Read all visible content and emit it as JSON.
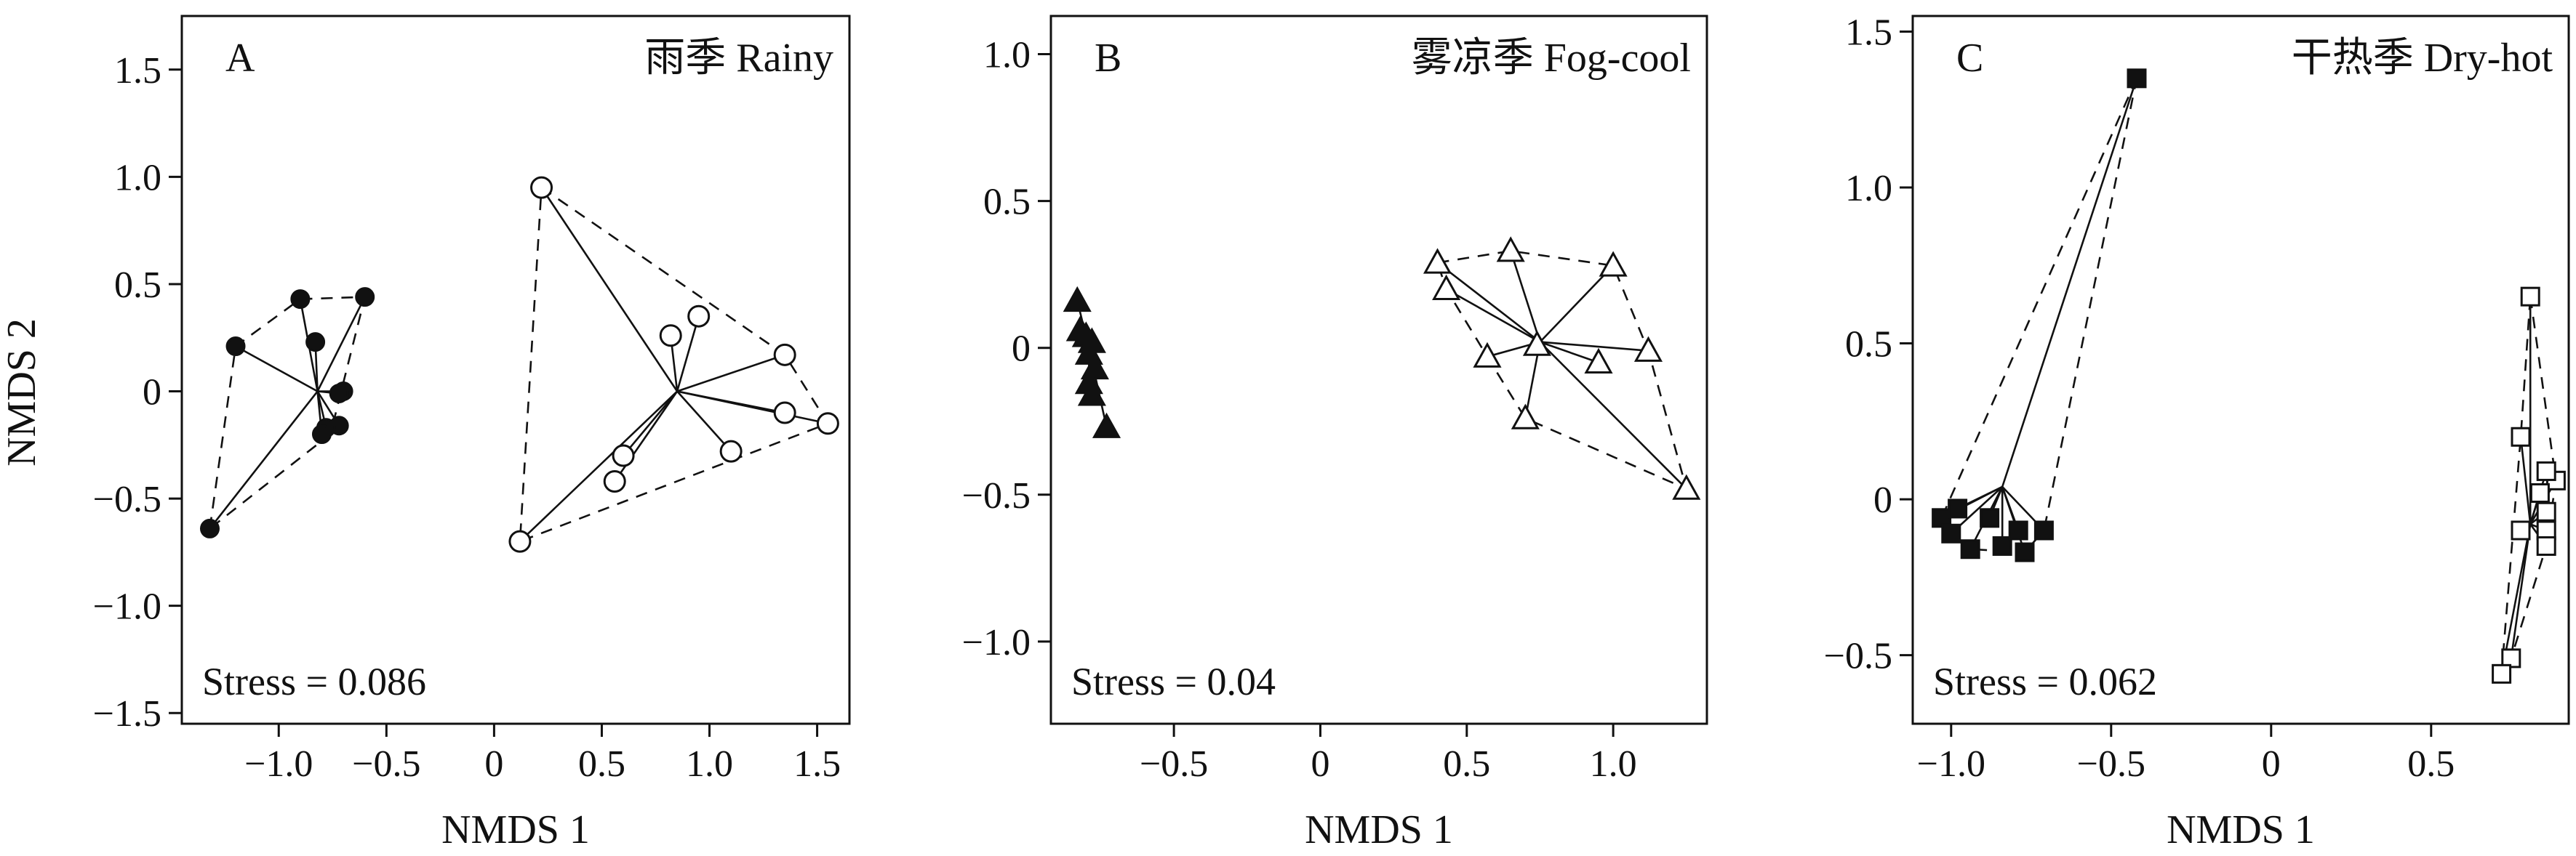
{
  "axis_labels": {
    "x": "NMDS 1",
    "y": "NMDS 2"
  },
  "chart_data": [
    {
      "type": "scatter",
      "panel": "A",
      "title": "雨季 Rainy",
      "xlabel": "NMDS 1",
      "ylabel": "NMDS 2",
      "xlim": [
        -1.45,
        1.65
      ],
      "ylim": [
        -1.55,
        1.75
      ],
      "xticks": [
        -1.0,
        -0.5,
        0,
        0.5,
        1.0,
        1.5
      ],
      "xtick_labels": [
        "−1.0",
        "−0.5",
        "0",
        "0.5",
        "1.0",
        "1.5"
      ],
      "yticks": [
        -1.5,
        -1.0,
        -0.5,
        0,
        0.5,
        1.0,
        1.5
      ],
      "ytick_labels": [
        "−1.5",
        "−1.0",
        "−0.5",
        "0",
        "0.5",
        "1.0",
        "1.5"
      ],
      "stress": "Stress = 0.086",
      "series": [
        {
          "marker": "circle-filled",
          "centroid": [
            -0.82,
            0.0
          ],
          "hull": [
            [
              -1.32,
              -0.64
            ],
            [
              -1.2,
              0.21
            ],
            [
              -0.9,
              0.43
            ],
            [
              -0.6,
              0.44
            ],
            [
              -0.76,
              -0.2
            ]
          ],
          "points": [
            [
              -1.32,
              -0.64
            ],
            [
              -1.2,
              0.21
            ],
            [
              -0.9,
              0.43
            ],
            [
              -0.6,
              0.44
            ],
            [
              -0.83,
              0.23
            ],
            [
              -0.7,
              0.0
            ],
            [
              -0.72,
              -0.01
            ],
            [
              -0.72,
              -0.16
            ],
            [
              -0.78,
              -0.17
            ],
            [
              -0.8,
              -0.2
            ]
          ]
        },
        {
          "marker": "circle-open",
          "centroid": [
            0.85,
            0.0
          ],
          "hull": [
            [
              0.22,
              0.95
            ],
            [
              1.35,
              0.17
            ],
            [
              1.55,
              -0.15
            ],
            [
              0.12,
              -0.7
            ]
          ],
          "points": [
            [
              0.22,
              0.95
            ],
            [
              0.95,
              0.35
            ],
            [
              0.82,
              0.26
            ],
            [
              1.35,
              0.17
            ],
            [
              1.35,
              -0.1
            ],
            [
              1.55,
              -0.15
            ],
            [
              1.1,
              -0.28
            ],
            [
              0.6,
              -0.3
            ],
            [
              0.56,
              -0.42
            ],
            [
              0.12,
              -0.7
            ]
          ]
        }
      ]
    },
    {
      "type": "scatter",
      "panel": "B",
      "title": "雾凉季 Fog-cool",
      "xlabel": "NMDS 1",
      "ylabel": "",
      "xlim": [
        -0.92,
        1.32
      ],
      "ylim": [
        -1.28,
        1.13
      ],
      "xticks": [
        -0.5,
        0,
        0.5,
        1.0
      ],
      "xtick_labels": [
        "−0.5",
        "0",
        "0.5",
        "1.0"
      ],
      "yticks": [
        -1.0,
        -0.5,
        0,
        0.5,
        1.0
      ],
      "ytick_labels": [
        "−1.0",
        "−0.5",
        "0",
        "0.5",
        "1.0"
      ],
      "stress": "Stress = 0.04",
      "series": [
        {
          "marker": "triangle-filled",
          "centroid": [
            -0.79,
            0.0
          ],
          "hull": [],
          "points": [
            [
              -0.83,
              0.16
            ],
            [
              -0.82,
              0.06
            ],
            [
              -0.8,
              0.04
            ],
            [
              -0.78,
              0.02
            ],
            [
              -0.79,
              -0.02
            ],
            [
              -0.77,
              -0.07
            ],
            [
              -0.79,
              -0.12
            ],
            [
              -0.78,
              -0.16
            ],
            [
              -0.73,
              -0.27
            ]
          ]
        },
        {
          "marker": "triangle-open",
          "centroid": [
            0.75,
            0.02
          ],
          "hull": [
            [
              0.4,
              0.29
            ],
            [
              0.65,
              0.33
            ],
            [
              1.0,
              0.28
            ],
            [
              1.12,
              -0.01
            ],
            [
              1.25,
              -0.48
            ],
            [
              0.7,
              -0.24
            ],
            [
              0.57,
              -0.03
            ],
            [
              0.43,
              0.2
            ]
          ],
          "points": [
            [
              0.4,
              0.29
            ],
            [
              0.43,
              0.2
            ],
            [
              0.65,
              0.33
            ],
            [
              1.0,
              0.28
            ],
            [
              0.57,
              -0.03
            ],
            [
              0.74,
              0.01
            ],
            [
              0.95,
              -0.05
            ],
            [
              1.12,
              -0.01
            ],
            [
              0.7,
              -0.24
            ],
            [
              1.25,
              -0.48
            ]
          ]
        }
      ]
    },
    {
      "type": "scatter",
      "panel": "C",
      "title": "干热季 Dry-hot",
      "xlabel": "NMDS 1",
      "ylabel": "",
      "xlim": [
        -1.12,
        0.93
      ],
      "ylim": [
        -0.72,
        1.55
      ],
      "xticks": [
        -1.0,
        -0.5,
        0,
        0.5
      ],
      "xtick_labels": [
        "−1.0",
        "−0.5",
        "0",
        "0.5"
      ],
      "yticks": [
        -0.5,
        0,
        0.5,
        1.0,
        1.5
      ],
      "ytick_labels": [
        "−0.5",
        "0",
        "0.5",
        "1.0",
        "1.5"
      ],
      "stress": "Stress = 0.062",
      "series": [
        {
          "marker": "square-filled",
          "centroid": [
            -0.84,
            0.04
          ],
          "hull": [
            [
              -0.42,
              1.35
            ],
            [
              -1.03,
              -0.06
            ],
            [
              -1.0,
              -0.11
            ],
            [
              -0.94,
              -0.16
            ],
            [
              -0.77,
              -0.17
            ],
            [
              -0.71,
              -0.1
            ]
          ],
          "points": [
            [
              -0.42,
              1.35
            ],
            [
              -1.03,
              -0.06
            ],
            [
              -0.98,
              -0.03
            ],
            [
              -1.0,
              -0.11
            ],
            [
              -0.94,
              -0.16
            ],
            [
              -0.88,
              -0.06
            ],
            [
              -0.84,
              -0.15
            ],
            [
              -0.79,
              -0.1
            ],
            [
              -0.77,
              -0.17
            ],
            [
              -0.71,
              -0.1
            ]
          ]
        },
        {
          "marker": "square-open",
          "centroid": [
            0.81,
            -0.08
          ],
          "hull": [
            [
              0.81,
              0.65
            ],
            [
              0.89,
              0.06
            ],
            [
              0.86,
              -0.15
            ],
            [
              0.75,
              -0.51
            ],
            [
              0.72,
              -0.56
            ],
            [
              0.78,
              0.2
            ]
          ],
          "points": [
            [
              0.81,
              0.65
            ],
            [
              0.78,
              0.2
            ],
            [
              0.89,
              0.06
            ],
            [
              0.86,
              0.09
            ],
            [
              0.84,
              0.02
            ],
            [
              0.86,
              -0.04
            ],
            [
              0.86,
              -0.1
            ],
            [
              0.86,
              -0.15
            ],
            [
              0.78,
              -0.1
            ],
            [
              0.75,
              -0.51
            ],
            [
              0.72,
              -0.56
            ]
          ]
        }
      ]
    }
  ]
}
